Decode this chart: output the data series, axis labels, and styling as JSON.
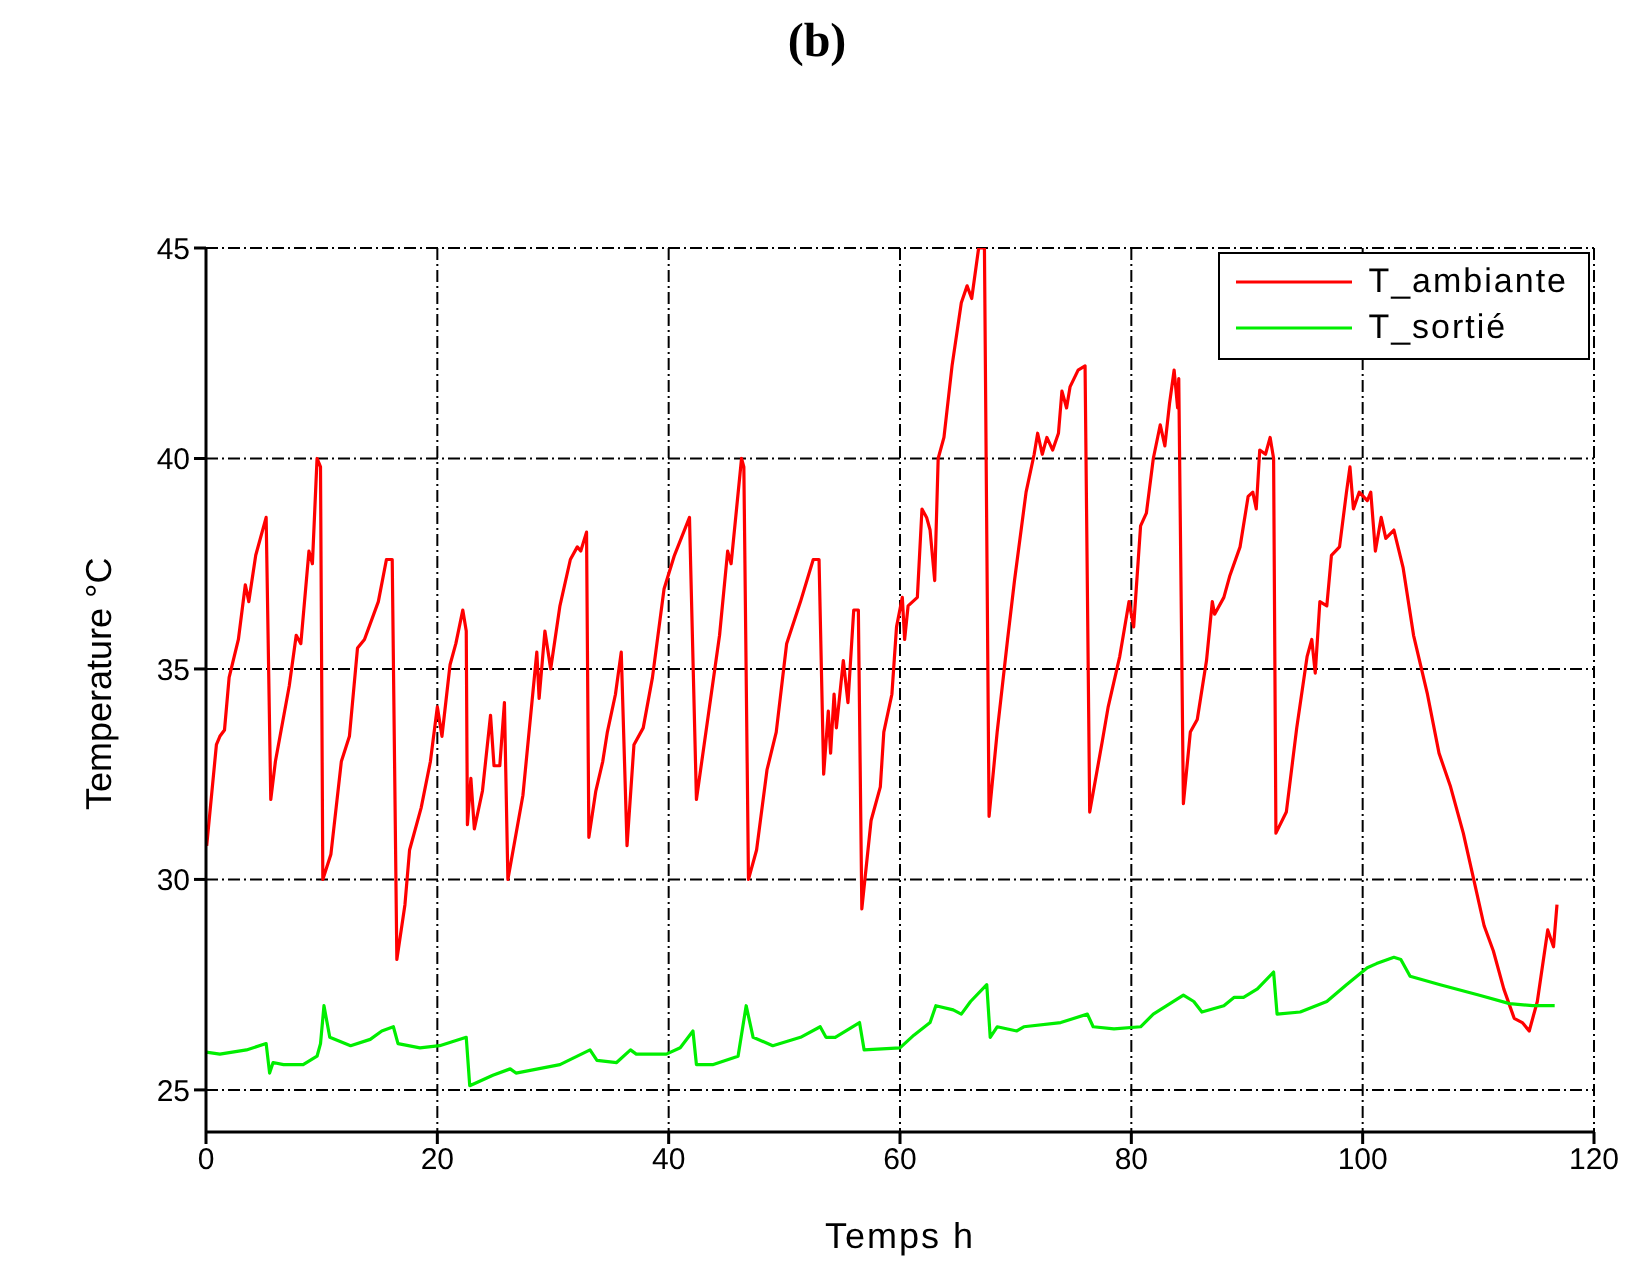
{
  "chart_data": {
    "type": "line",
    "title": "(b)",
    "xlabel": "Temps h",
    "ylabel": "Temperature °C",
    "xlim": [
      0,
      120
    ],
    "xticks": [
      0,
      20,
      40,
      60,
      80,
      100,
      120
    ],
    "ylim": [
      24,
      45
    ],
    "yticks": [
      25,
      30,
      35,
      40,
      45
    ],
    "grid": true,
    "legend": "top right",
    "marker": "none",
    "line_style": "solid",
    "series": [
      {
        "name": "T_ambiante",
        "color": "#ff0000",
        "x": [
          0.06,
          0.9,
          1.2,
          1.6,
          2.0,
          2.8,
          3.4,
          3.7,
          4.3,
          5.2,
          5.6,
          6.0,
          7.2,
          7.8,
          8.2,
          8.9,
          9.2,
          9.6,
          9.9,
          10.1,
          10.8,
          11.7,
          12.4,
          13.1,
          13.7,
          14.9,
          15.6,
          16.1,
          16.5,
          17.2,
          17.6,
          18.6,
          19.4,
          20.0,
          20.4,
          21.1,
          21.6,
          22.2,
          22.5,
          22.6,
          22.9,
          23.2,
          23.9,
          24.6,
          24.9,
          25.4,
          25.8,
          26.1,
          27.4,
          28.6,
          28.8,
          29.3,
          29.8,
          30.6,
          31.5,
          32.1,
          32.4,
          32.9,
          33.1,
          33.7,
          34.3,
          34.7,
          35.4,
          35.9,
          36.4,
          37.0,
          37.8,
          38.6,
          39.6,
          40.5,
          41.8,
          42.4,
          44.4,
          45.1,
          45.4,
          46.3,
          46.5,
          46.9,
          47.6,
          48.5,
          49.3,
          50.2,
          51.4,
          52.5,
          53.0,
          53.4,
          53.8,
          54.0,
          54.3,
          54.5,
          55.1,
          55.5,
          56.0,
          56.4,
          56.7,
          57.5,
          58.3,
          58.6,
          59.3,
          59.7,
          60.2,
          60.4,
          60.7,
          61.5,
          61.9,
          62.3,
          62.6,
          63.0,
          63.3,
          63.8,
          64.5,
          65.3,
          65.8,
          66.2,
          66.8,
          67.3,
          67.7,
          68.4,
          69.3,
          69.9,
          70.9,
          71.6,
          71.9,
          72.3,
          72.7,
          73.2,
          73.7,
          74.0,
          74.4,
          74.7,
          75.4,
          76.0,
          76.4,
          77.5,
          78.0,
          79.0,
          79.8,
          80.2,
          80.8,
          81.3,
          81.9,
          82.5,
          82.9,
          83.3,
          83.7,
          84.0,
          84.1,
          84.5,
          85.1,
          85.7,
          86.5,
          87.0,
          87.2,
          88.0,
          88.5,
          89.4,
          90.1,
          90.5,
          90.8,
          91.1,
          91.6,
          92.0,
          92.3,
          92.5,
          93.4,
          94.3,
          95.2,
          95.6,
          95.9,
          96.3,
          96.9,
          97.3,
          98.0,
          98.6,
          98.9,
          99.2,
          99.7,
          100.4,
          100.7,
          101.1,
          101.6,
          102.0,
          102.7,
          103.5,
          104.4,
          105.6,
          106.6,
          107.6,
          108.7,
          109.6,
          110.5,
          111.3,
          112.2,
          113.1,
          113.8,
          114.4,
          115.1,
          116.0,
          116.5,
          116.8
        ],
        "values": [
          30.8,
          33.2,
          33.4,
          33.55,
          34.8,
          35.7,
          37.0,
          36.6,
          37.7,
          38.6,
          31.9,
          32.8,
          34.6,
          35.8,
          35.6,
          37.8,
          37.5,
          40.0,
          39.8,
          30.0,
          30.6,
          32.8,
          33.4,
          35.5,
          35.7,
          36.6,
          37.6,
          37.6,
          28.1,
          29.4,
          30.7,
          31.7,
          32.8,
          34.1,
          33.4,
          35.1,
          35.6,
          36.4,
          35.9,
          31.3,
          32.4,
          31.2,
          32.1,
          33.9,
          32.7,
          32.7,
          34.2,
          30.0,
          32.0,
          35.4,
          34.3,
          35.9,
          35.0,
          36.5,
          37.6,
          37.9,
          37.8,
          38.25,
          31.0,
          32.1,
          32.8,
          33.5,
          34.4,
          35.4,
          30.8,
          33.2,
          33.6,
          34.8,
          36.9,
          37.7,
          38.6,
          31.9,
          35.8,
          37.8,
          37.5,
          40.0,
          39.8,
          30.0,
          30.7,
          32.6,
          33.5,
          35.6,
          36.6,
          37.6,
          37.6,
          32.5,
          34.0,
          33.0,
          34.4,
          33.6,
          35.2,
          34.2,
          36.4,
          36.4,
          29.3,
          31.4,
          32.2,
          33.5,
          34.4,
          36.0,
          36.7,
          35.7,
          36.5,
          36.7,
          38.8,
          38.6,
          38.3,
          37.1,
          40.0,
          40.5,
          42.2,
          43.7,
          44.1,
          43.8,
          45.0,
          45.0,
          31.5,
          33.5,
          35.7,
          37.1,
          39.2,
          40.1,
          40.6,
          40.1,
          40.5,
          40.2,
          40.6,
          41.6,
          41.2,
          41.7,
          42.1,
          42.2,
          31.6,
          33.3,
          34.1,
          35.3,
          36.6,
          36.0,
          38.4,
          38.7,
          40.0,
          40.8,
          40.3,
          41.3,
          42.1,
          41.2,
          41.9,
          31.8,
          33.5,
          33.8,
          35.2,
          36.6,
          36.3,
          36.7,
          37.2,
          37.9,
          39.1,
          39.2,
          38.8,
          40.2,
          40.1,
          40.5,
          40.0,
          31.1,
          31.6,
          33.6,
          35.3,
          35.7,
          34.9,
          36.6,
          36.5,
          37.7,
          37.9,
          39.2,
          39.8,
          38.8,
          39.2,
          39.0,
          39.2,
          37.8,
          38.6,
          38.1,
          38.3,
          37.4,
          35.8,
          34.4,
          33.0,
          32.2,
          31.1,
          30.0,
          28.9,
          28.3,
          27.4,
          26.7,
          26.6,
          26.4,
          27.1,
          28.8,
          28.4,
          29.4
        ]
      },
      {
        "name": "T_sortié",
        "color": "#00ee00",
        "x": [
          0.0,
          1.2,
          3.5,
          5.2,
          5.5,
          5.8,
          6.7,
          8.4,
          9.6,
          9.9,
          10.2,
          10.7,
          12.5,
          14.2,
          15.2,
          16.2,
          16.6,
          18.5,
          20.2,
          22.5,
          22.8,
          24.8,
          26.3,
          26.8,
          30.6,
          33.2,
          33.8,
          35.5,
          36.7,
          37.2,
          39.8,
          41.0,
          42.1,
          42.4,
          43.8,
          46.0,
          46.7,
          47.3,
          49.0,
          51.4,
          53.1,
          53.6,
          54.4,
          56.5,
          56.9,
          60.0,
          61.2,
          62.6,
          63.1,
          64.6,
          65.3,
          66.1,
          67.5,
          67.8,
          68.4,
          70.1,
          70.7,
          73.9,
          76.2,
          76.7,
          78.5,
          80.8,
          81.9,
          84.5,
          85.4,
          86.1,
          88.0,
          88.9,
          89.7,
          90.9,
          92.3,
          92.6,
          94.6,
          96.9,
          98.6,
          100.4,
          101.2,
          102.7,
          103.3,
          104.1,
          106.7,
          110.1,
          112.7,
          114.7,
          116.6
        ],
        "values": [
          25.9,
          25.85,
          25.95,
          26.1,
          25.4,
          25.65,
          25.6,
          25.6,
          25.8,
          26.1,
          27.0,
          26.25,
          26.05,
          26.2,
          26.4,
          26.5,
          26.1,
          26.0,
          26.05,
          26.25,
          25.1,
          25.35,
          25.5,
          25.4,
          25.6,
          25.95,
          25.7,
          25.65,
          25.95,
          25.85,
          25.85,
          26.0,
          26.4,
          25.6,
          25.6,
          25.8,
          27.0,
          26.25,
          26.05,
          26.25,
          26.5,
          26.25,
          26.25,
          26.6,
          25.95,
          26.0,
          26.3,
          26.6,
          27.0,
          26.9,
          26.8,
          27.1,
          27.5,
          26.25,
          26.5,
          26.4,
          26.5,
          26.6,
          26.8,
          26.5,
          26.45,
          26.5,
          26.8,
          27.25,
          27.1,
          26.85,
          27.0,
          27.2,
          27.2,
          27.4,
          27.8,
          26.8,
          26.85,
          27.1,
          27.5,
          27.9,
          28.0,
          28.15,
          28.1,
          27.7,
          27.5,
          27.25,
          27.05,
          27.0,
          27.0
        ]
      }
    ]
  }
}
